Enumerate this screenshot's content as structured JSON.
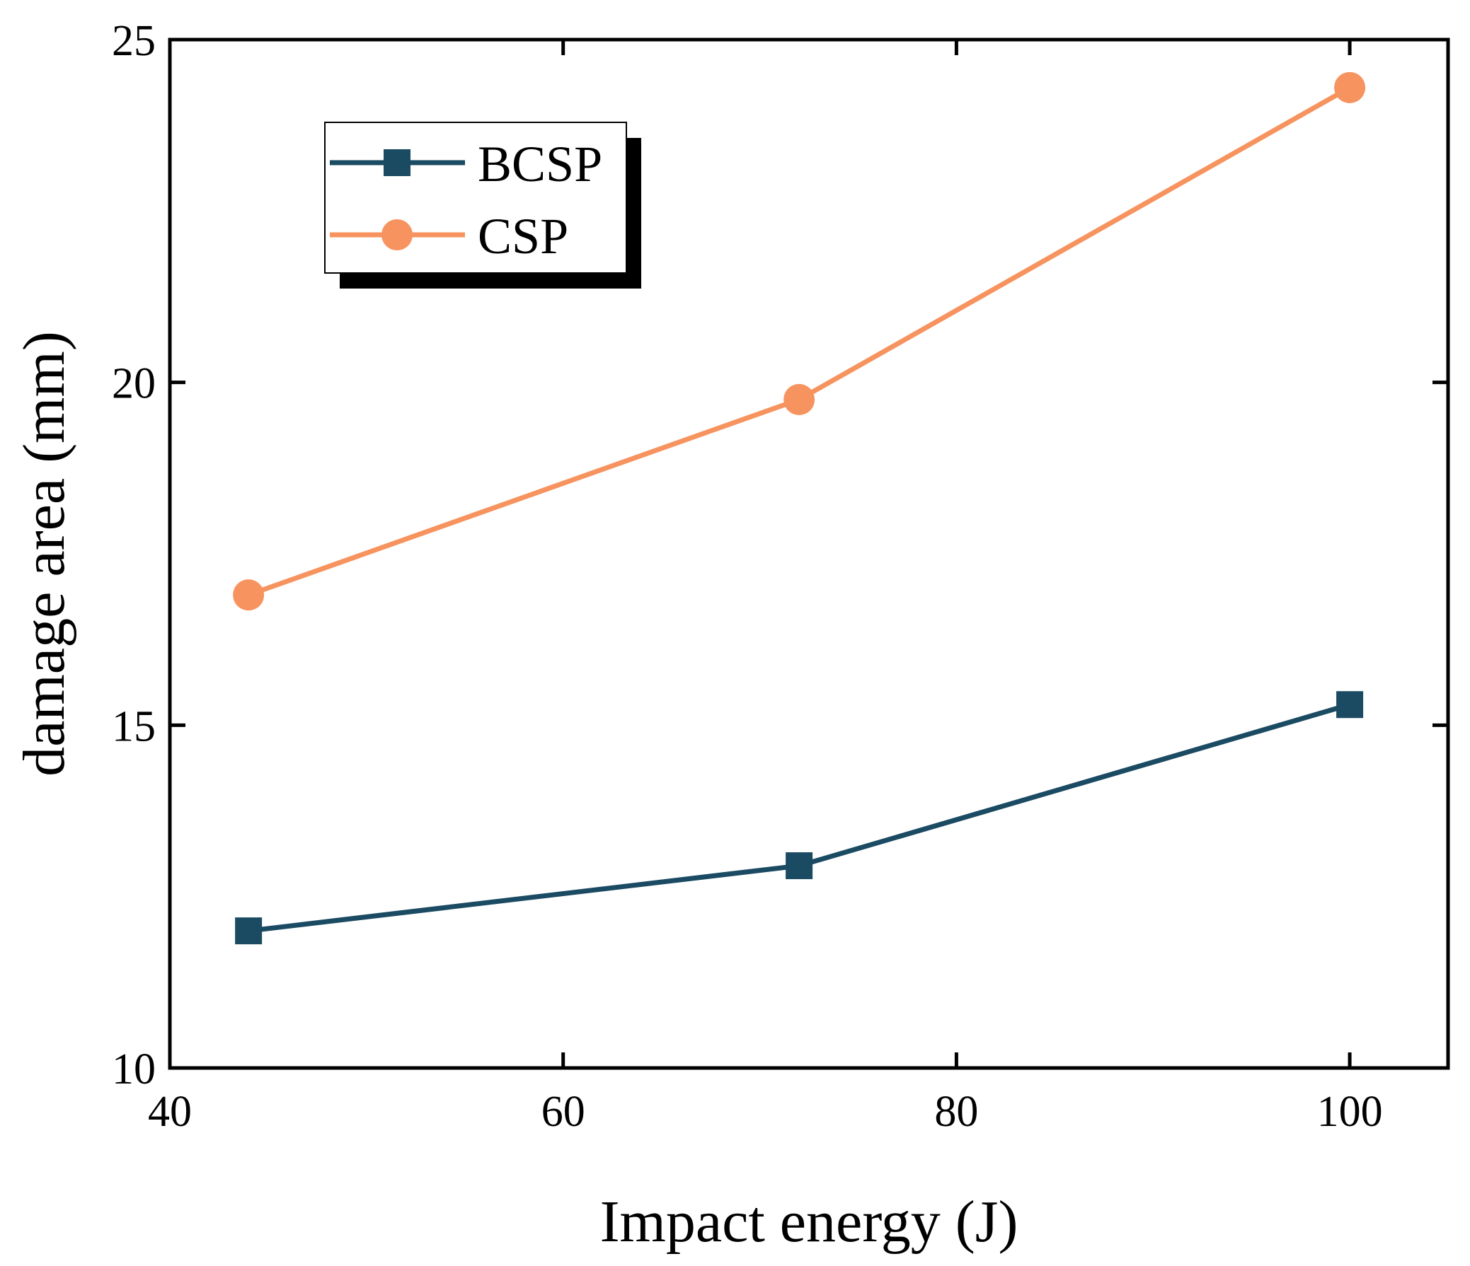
{
  "chart_data": {
    "type": "line",
    "title": "",
    "xlabel": "Impact energy (J)",
    "ylabel": "damage area (mm)",
    "xlim": [
      40,
      105
    ],
    "ylim": [
      10,
      25
    ],
    "xticks": [
      40,
      60,
      80,
      100
    ],
    "xtick_labels": [
      "40",
      "60",
      "80",
      "100"
    ],
    "yticks": [
      10,
      15,
      20,
      25
    ],
    "ytick_labels": [
      "10",
      "15",
      "20",
      "25"
    ],
    "grid": false,
    "legend_position": "top-left",
    "series": [
      {
        "name": "BCSP",
        "marker": "square",
        "color": "#1b4a63",
        "x": [
          44,
          72,
          100
        ],
        "y": [
          12.0,
          12.95,
          15.3
        ]
      },
      {
        "name": "CSP",
        "marker": "circle",
        "color": "#f7935f",
        "x": [
          44,
          72,
          100
        ],
        "y": [
          16.9,
          19.75,
          24.3
        ]
      }
    ]
  }
}
